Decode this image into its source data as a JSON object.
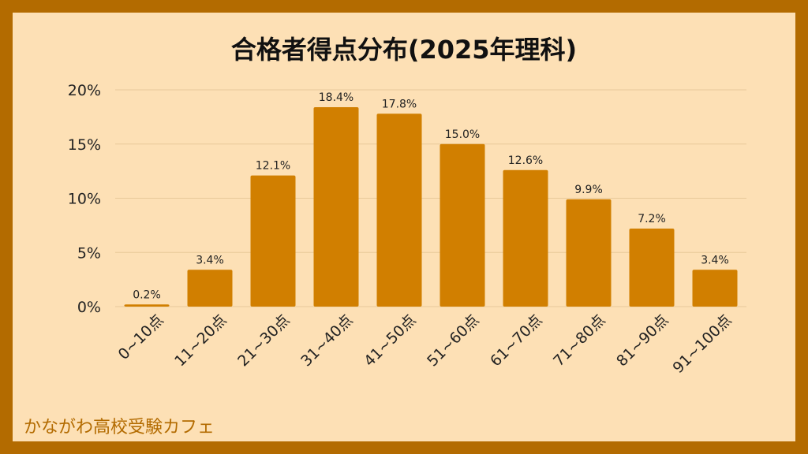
{
  "brand": "かながわ高校受験カフェ",
  "colors": {
    "bar": "#d17f00",
    "frame": "#b36b00",
    "background": "#fde0b5",
    "grid": "#e8c99a"
  },
  "chart_data": {
    "type": "bar",
    "title": "合格者得点分布(2025年理科)",
    "categories": [
      "0~10点",
      "11~20点",
      "21~30点",
      "31~40点",
      "41~50点",
      "51~60点",
      "61~70点",
      "71~80点",
      "81~90点",
      "91~100点"
    ],
    "values": [
      0.2,
      3.4,
      12.1,
      18.4,
      17.8,
      15.0,
      12.6,
      9.9,
      7.2,
      3.4
    ],
    "data_labels": [
      "0.2%",
      "3.4%",
      "12.1%",
      "18.4%",
      "17.8%",
      "15.0%",
      "12.6%",
      "9.9%",
      "7.2%",
      "3.4%"
    ],
    "y_ticks": [
      0,
      5,
      10,
      15,
      20
    ],
    "y_tick_labels": [
      "0%",
      "5%",
      "10%",
      "15%",
      "20%"
    ],
    "ylim": [
      0,
      20
    ],
    "grid": true,
    "legend": false
  }
}
